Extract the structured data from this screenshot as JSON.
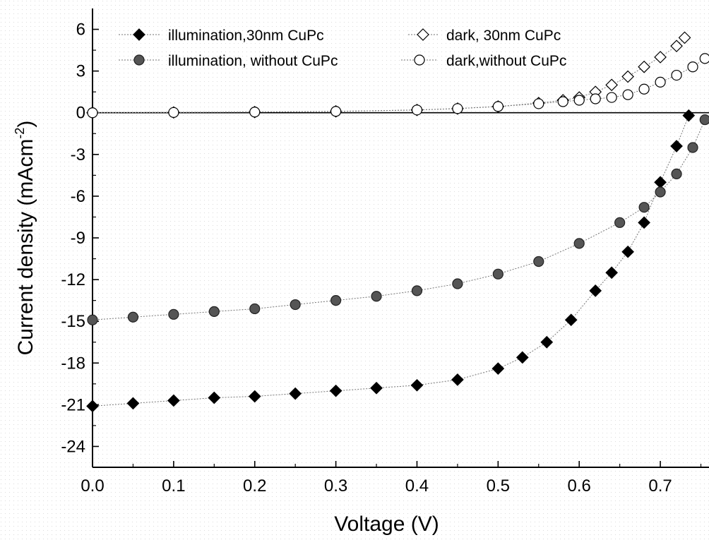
{
  "chart_data": {
    "type": "scatter",
    "title": "",
    "xlabel": "Voltage (V)",
    "ylabel_main": "Current density (mAcm",
    "ylabel_sup": "-2",
    "ylabel_close": ")",
    "xlim": [
      0.0,
      0.76
    ],
    "ylim": [
      -25.5,
      7.5
    ],
    "xticks": [
      0.0,
      0.1,
      0.2,
      0.3,
      0.4,
      0.5,
      0.6,
      0.7
    ],
    "xtick_labels": [
      "0.0",
      "0.1",
      "0.2",
      "0.3",
      "0.4",
      "0.5",
      "0.6",
      "0.7"
    ],
    "yticks": [
      6,
      3,
      0,
      -3,
      -6,
      -9,
      -12,
      -15,
      -18,
      -21,
      -24
    ],
    "ytick_labels": [
      "6",
      "3",
      "0",
      "-3",
      "-6",
      "-9",
      "-12",
      "-15",
      "-18",
      "-21",
      "-24"
    ],
    "grid": false,
    "zero_line": true,
    "legend_placement": "top",
    "series": [
      {
        "name": "illumination,30nm CuPc",
        "marker": "filled-diamond",
        "color": "#000000",
        "x": [
          0.0,
          0.05,
          0.1,
          0.15,
          0.2,
          0.25,
          0.3,
          0.35,
          0.4,
          0.45,
          0.5,
          0.53,
          0.56,
          0.59,
          0.62,
          0.64,
          0.66,
          0.68,
          0.7,
          0.72,
          0.735
        ],
        "y": [
          -21.1,
          -20.9,
          -20.7,
          -20.5,
          -20.4,
          -20.2,
          -20.0,
          -19.8,
          -19.6,
          -19.2,
          -18.4,
          -17.6,
          -16.5,
          -14.9,
          -12.8,
          -11.5,
          -10.0,
          -7.9,
          -5.0,
          -2.4,
          -0.2
        ]
      },
      {
        "name": "illumination, without CuPc",
        "marker": "filled-circle",
        "color": "#555555",
        "x": [
          0.0,
          0.05,
          0.1,
          0.15,
          0.2,
          0.25,
          0.3,
          0.35,
          0.4,
          0.45,
          0.5,
          0.55,
          0.6,
          0.65,
          0.68,
          0.7,
          0.72,
          0.74,
          0.755
        ],
        "y": [
          -14.9,
          -14.7,
          -14.5,
          -14.3,
          -14.1,
          -13.8,
          -13.5,
          -13.2,
          -12.8,
          -12.3,
          -11.6,
          -10.7,
          -9.4,
          -7.9,
          -6.8,
          -5.7,
          -4.4,
          -2.5,
          -0.5
        ]
      },
      {
        "name": "dark, 30nm CuPc",
        "marker": "open-diamond",
        "color": "#000000",
        "x": [
          0.0,
          0.1,
          0.2,
          0.3,
          0.4,
          0.45,
          0.5,
          0.55,
          0.58,
          0.6,
          0.62,
          0.64,
          0.66,
          0.68,
          0.7,
          0.72,
          0.73
        ],
        "y": [
          0.0,
          0.02,
          0.05,
          0.1,
          0.2,
          0.3,
          0.45,
          0.7,
          0.9,
          1.1,
          1.5,
          2.0,
          2.6,
          3.3,
          4.0,
          4.8,
          5.4
        ]
      },
      {
        "name": "dark,without CuPc",
        "marker": "open-circle",
        "color": "#000000",
        "x": [
          0.0,
          0.1,
          0.2,
          0.3,
          0.4,
          0.45,
          0.5,
          0.55,
          0.58,
          0.6,
          0.62,
          0.64,
          0.66,
          0.68,
          0.7,
          0.72,
          0.74,
          0.755
        ],
        "y": [
          0.0,
          0.02,
          0.05,
          0.1,
          0.2,
          0.3,
          0.45,
          0.65,
          0.8,
          0.9,
          1.0,
          1.1,
          1.3,
          1.7,
          2.2,
          2.7,
          3.3,
          3.9
        ]
      }
    ]
  }
}
